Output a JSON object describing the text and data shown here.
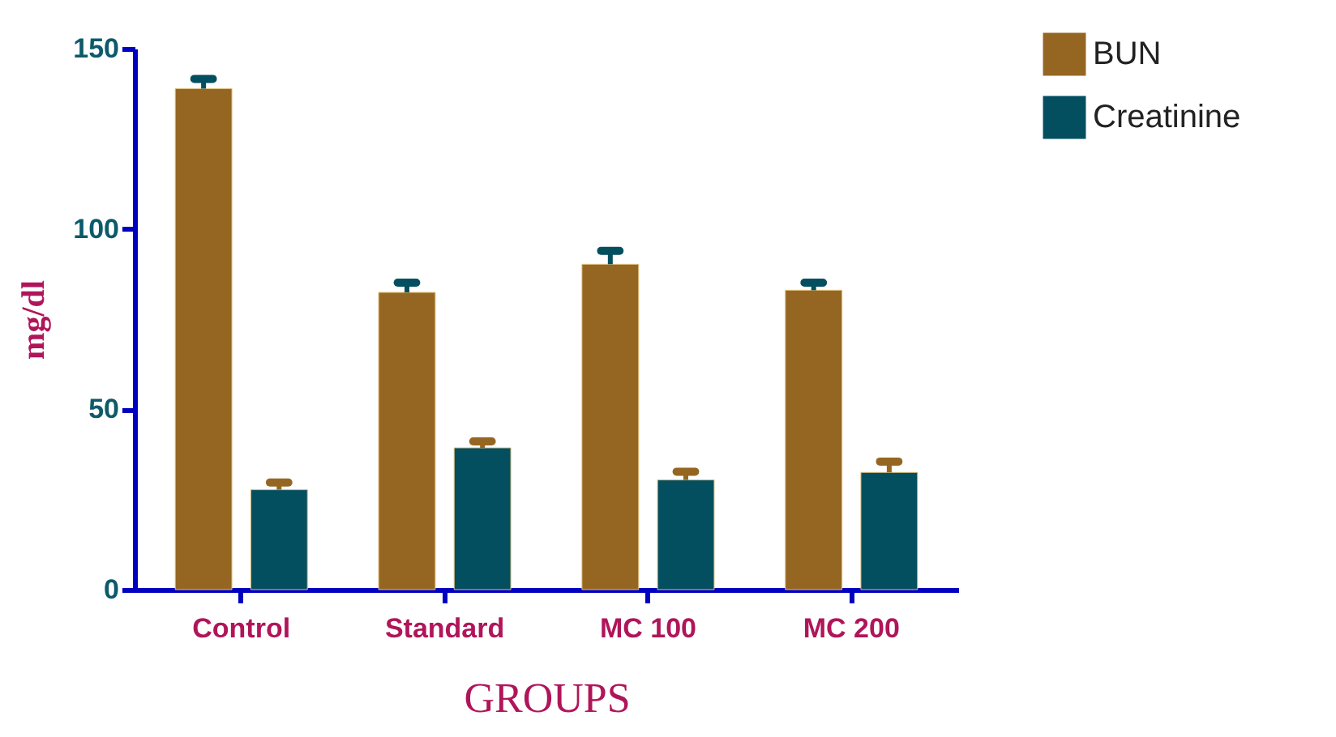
{
  "chart_data": {
    "type": "bar",
    "xlabel": "GROUPS",
    "ylabel": "mg/dl",
    "categories": [
      "Control",
      "Standard",
      "MC 100",
      "MC 200"
    ],
    "series": [
      {
        "name": "BUN",
        "color": "#956622",
        "values": [
          138.9,
          82.4,
          90.2,
          83.0
        ],
        "errors": [
          [
            138.9,
            141.6
          ],
          [
            82.4,
            85.1
          ],
          [
            90.2,
            93.9
          ],
          [
            83.0,
            85.1
          ]
        ]
      },
      {
        "name": "Creatinine",
        "color": "#034f60",
        "values": [
          27.7,
          39.3,
          30.4,
          32.5
        ],
        "errors": [
          [
            27.7,
            29.7
          ],
          [
            39.3,
            41.1
          ],
          [
            30.4,
            32.7
          ],
          [
            32.5,
            35.5
          ]
        ]
      }
    ],
    "ylim": [
      0,
      150
    ],
    "yticks": [
      0,
      50,
      100,
      150
    ],
    "grid": false,
    "legend": "top right"
  }
}
